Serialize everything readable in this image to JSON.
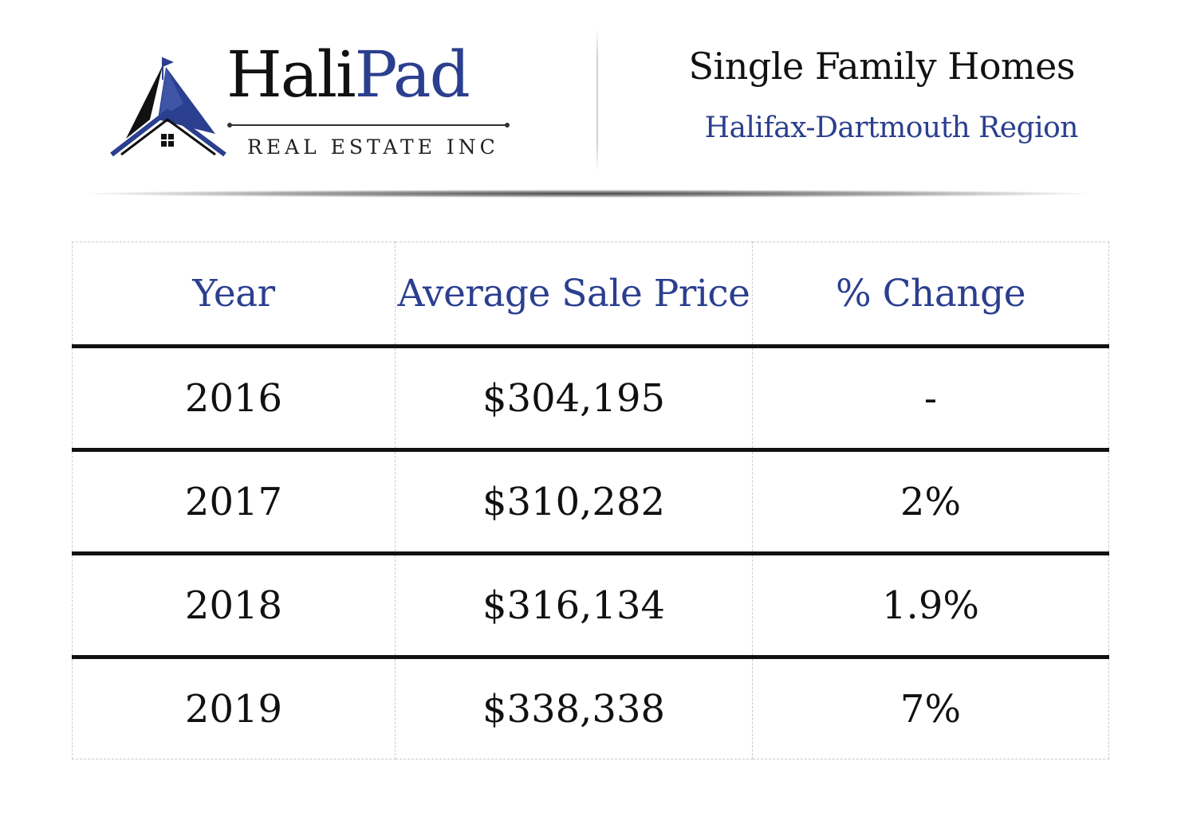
{
  "brand": {
    "name_part1": "Hali",
    "name_part2": "Pad",
    "tagline": "REAL ESTATE INC",
    "colors": {
      "navy": "#2b3f8f",
      "black": "#111111"
    },
    "icon": "house-sail-icon"
  },
  "header": {
    "title": "Single Family Homes",
    "subtitle": "Halifax-Dartmouth Region"
  },
  "table": {
    "columns": [
      "Year",
      "Average Sale Price",
      "% Change"
    ],
    "rows": [
      {
        "year": "2016",
        "price": "$304,195",
        "change": "-"
      },
      {
        "year": "2017",
        "price": "$310,282",
        "change": "2%"
      },
      {
        "year": "2018",
        "price": "$316,134",
        "change": "1.9%"
      },
      {
        "year": "2019",
        "price": "$338,338",
        "change": "7%"
      }
    ]
  }
}
